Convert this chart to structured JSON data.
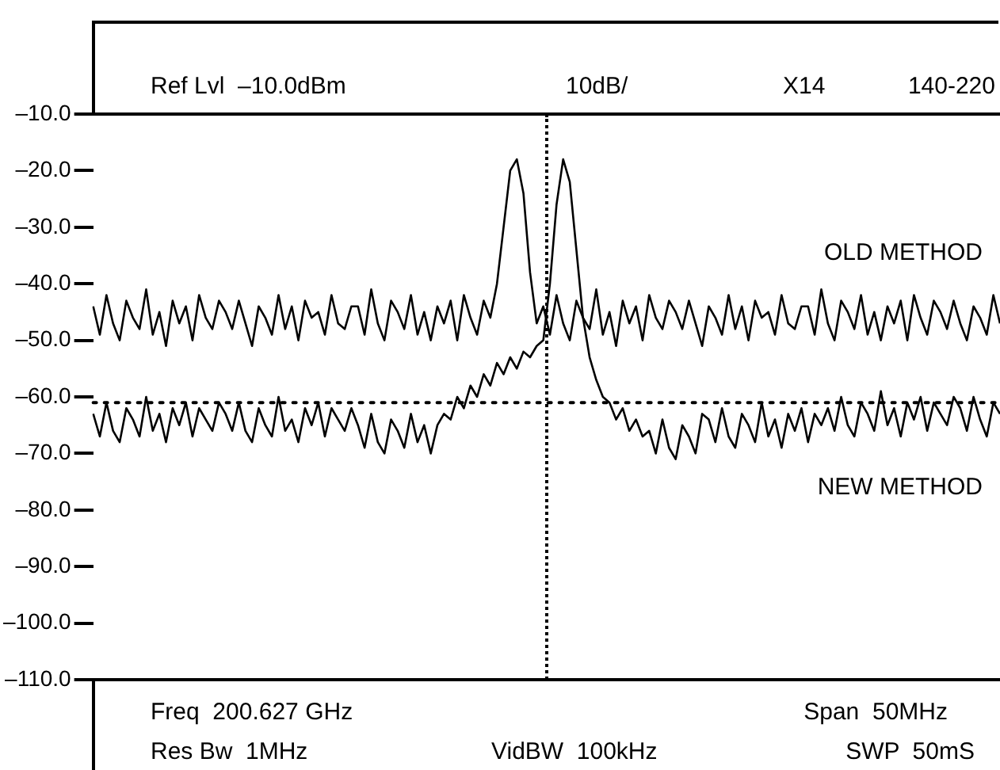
{
  "chart_data": {
    "type": "line",
    "categories": [
      null,
      null,
      null,
      null,
      null,
      null,
      null,
      null,
      null,
      null,
      null,
      null,
      null,
      null,
      null,
      null,
      null,
      null,
      null,
      null,
      null,
      null,
      null,
      null,
      null,
      null,
      null,
      null,
      null,
      null,
      null,
      null,
      null,
      null,
      null,
      null,
      null,
      null,
      null,
      null,
      null,
      null,
      null,
      null,
      null,
      null,
      null,
      null,
      null,
      null,
      null,
      null,
      null,
      null,
      null,
      null,
      null,
      null,
      null,
      null,
      null,
      null,
      null,
      null,
      null,
      null,
      null,
      null,
      null,
      null,
      null,
      null,
      null,
      null,
      null,
      null,
      null,
      null,
      null,
      null,
      null,
      null,
      null,
      null,
      null,
      null,
      null,
      null,
      null,
      null,
      null,
      null,
      null,
      null,
      null,
      null,
      null,
      null,
      null,
      null,
      null,
      null,
      null,
      null,
      null,
      null,
      null,
      null,
      null,
      null,
      null,
      null,
      null,
      null,
      null,
      null,
      null,
      null,
      null,
      null,
      null,
      null,
      null,
      null,
      null,
      null,
      null,
      null,
      null,
      null,
      null,
      null,
      null,
      null,
      null,
      null,
      null,
      null
    ],
    "series": [
      {
        "name": "OLD METHOD",
        "color": "#000000",
        "values": [
          -44,
          -49,
          -42,
          -47,
          -50,
          -43,
          -46,
          -48,
          -41,
          -49,
          -45,
          -51,
          -43,
          -47,
          -44,
          -50,
          -42,
          -46,
          -48,
          -43,
          -45,
          -48,
          -43,
          -47,
          -51,
          -44,
          -46,
          -49,
          -42,
          -48,
          -44,
          -50,
          -43,
          -46,
          -45,
          -49,
          -42,
          -47,
          -48,
          -44,
          -44,
          -49,
          -41,
          -47,
          -50,
          -43,
          -45,
          -48,
          -42,
          -49,
          -45,
          -50,
          -44,
          -47,
          -43,
          -50,
          -42,
          -46,
          -49,
          -43,
          -46,
          -40,
          -30,
          -20,
          -18,
          -24,
          -38,
          -47,
          -44,
          -49,
          -42,
          -47,
          -50,
          -43,
          -46,
          -48,
          -41,
          -49,
          -45,
          -51,
          -43,
          -47,
          -44,
          -50,
          -42,
          -46,
          -48,
          -43,
          -45,
          -48,
          -43,
          -47,
          -51,
          -44,
          -46,
          -49,
          -42,
          -48,
          -44,
          -50,
          -43,
          -46,
          -45,
          -49,
          -42,
          -47,
          -48,
          -44,
          -44,
          -49,
          -41,
          -47,
          -50,
          -43,
          -45,
          -48,
          -42,
          -49,
          -45,
          -50,
          -44,
          -47,
          -43,
          -50,
          -42,
          -46,
          -49,
          -43,
          -45,
          -48,
          -43,
          -47,
          -50,
          -44,
          -46,
          -49,
          -42,
          -47
        ]
      },
      {
        "name": "NEW METHOD",
        "color": "#000000",
        "values": [
          -63,
          -67,
          -61,
          -66,
          -68,
          -62,
          -64,
          -67,
          -60,
          -66,
          -63,
          -68,
          -62,
          -65,
          -61,
          -67,
          -62,
          -64,
          -66,
          -61,
          -63,
          -66,
          -61,
          -66,
          -68,
          -62,
          -65,
          -67,
          -60,
          -66,
          -64,
          -68,
          -62,
          -65,
          -61,
          -67,
          -62,
          -64,
          -66,
          -62,
          -65,
          -69,
          -63,
          -68,
          -70,
          -64,
          -66,
          -69,
          -63,
          -68,
          -65,
          -70,
          -65,
          -63,
          -64,
          -60,
          -62,
          -58,
          -60,
          -56,
          -58,
          -54,
          -56,
          -53,
          -55,
          -52,
          -53,
          -51,
          -50,
          -40,
          -26,
          -18,
          -22,
          -34,
          -46,
          -53,
          -57,
          -60,
          -61,
          -64,
          -62,
          -66,
          -64,
          -67,
          -66,
          -70,
          -64,
          -69,
          -71,
          -65,
          -67,
          -70,
          -63,
          -64,
          -68,
          -62,
          -67,
          -69,
          -63,
          -65,
          -68,
          -61,
          -67,
          -64,
          -69,
          -63,
          -66,
          -62,
          -68,
          -63,
          -65,
          -62,
          -66,
          -60,
          -65,
          -67,
          -61,
          -63,
          -66,
          -59,
          -65,
          -62,
          -67,
          -61,
          -64,
          -60,
          -66,
          -61,
          -63,
          -65,
          -60,
          -62,
          -66,
          -60,
          -64,
          -67,
          -61,
          -63
        ]
      }
    ],
    "ylim": [
      -110,
      -10
    ],
    "yticks": [
      {
        "value": -10,
        "label": "–10.0"
      },
      {
        "value": -20,
        "label": "–20.0"
      },
      {
        "value": -30,
        "label": "–30.0"
      },
      {
        "value": -40,
        "label": "–40.0"
      },
      {
        "value": -50,
        "label": "–50.0"
      },
      {
        "value": -60,
        "label": "–60.0"
      },
      {
        "value": -70,
        "label": "–70.0"
      },
      {
        "value": -80,
        "label": "–80.0"
      },
      {
        "value": -90,
        "label": "–90.0"
      },
      {
        "value": -100,
        "label": "–100.0"
      },
      {
        "value": -110,
        "label": "–110.0"
      }
    ],
    "tick_labels": "y",
    "ref_lines": [
      {
        "axis": "y",
        "value": -61,
        "line_style": "dotted"
      }
    ],
    "annotations": [
      "Ref Lvl  –10.0dBm",
      "10dB/",
      "X14",
      "140-220",
      "Freq  200.627 GHz",
      "Span  50MHz",
      "Res Bw  1MHz",
      "VidBW  100kHz",
      "SWP  50mS"
    ]
  }
}
